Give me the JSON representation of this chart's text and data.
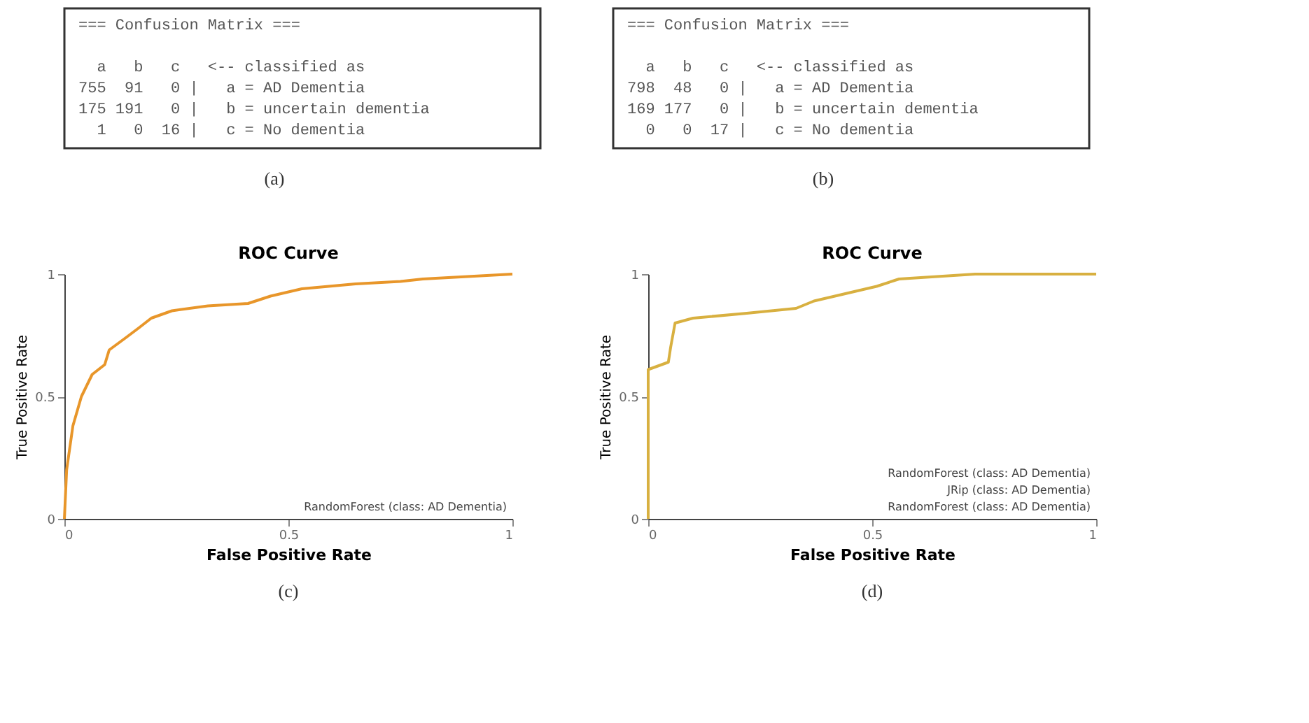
{
  "chart_data": [
    {
      "type": "other",
      "title": "=== Confusion Matrix ===",
      "annotations": [
        "  a   b   c   <-- classified as",
        "755  91   0 |   a = AD Dementia",
        "175 191   0 |   b = uncertain dementia",
        "  1   0  16 |   c = No dementia",
        "(a)"
      ]
    },
    {
      "type": "other",
      "title": "=== Confusion Matrix ===",
      "annotations": [
        "  a   b   c   <-- classified as",
        "798  48   0 |   a = AD Dementia",
        "169 177   0 |   b = uncertain dementia",
        "  0   0  17 |   c = No dementia",
        "(b)"
      ]
    },
    {
      "type": "line",
      "title": "ROC Curve",
      "xlabel": "False Positive Rate",
      "ylabel": "True Positive Rate",
      "xlim": [
        0,
        1
      ],
      "ylim": [
        0,
        1
      ],
      "xticks": [
        0,
        0.5,
        1
      ],
      "yticks": [
        0,
        0.5,
        1
      ],
      "grid": false,
      "marker": "none",
      "line_style": "solid",
      "annotations": [
        "RandomForest (class: AD Dementia)",
        "(c)"
      ],
      "series": [
        {
          "color": "#e8962a",
          "x": [
            0,
            0.005,
            0.019,
            0.038,
            0.062,
            0.09,
            0.1,
            0.137,
            0.166,
            0.194,
            0.24,
            0.32,
            0.41,
            0.46,
            0.53,
            0.65,
            0.75,
            0.8,
            0.9,
            1
          ],
          "values": [
            0,
            0.2,
            0.38,
            0.5,
            0.59,
            0.63,
            0.69,
            0.74,
            0.78,
            0.82,
            0.85,
            0.87,
            0.88,
            0.91,
            0.94,
            0.96,
            0.97,
            0.98,
            0.99,
            1
          ]
        }
      ]
    },
    {
      "type": "line",
      "title": "ROC Curve",
      "xlabel": "False Positive Rate",
      "ylabel": "True Positive Rate",
      "xlim": [
        0,
        1
      ],
      "ylim": [
        0,
        1
      ],
      "xticks": [
        0,
        0.5,
        1
      ],
      "yticks": [
        0,
        0.5,
        1
      ],
      "grid": false,
      "marker": "none",
      "line_style": "solid",
      "annotations": [
        "RandomForest (class: AD Dementia)",
        "JRip (class: AD Dementia)",
        "RandomForest (class: AD Dementia)",
        "(d)"
      ],
      "series": [
        {
          "color": "#d8b040",
          "x": [
            0,
            0,
            0.045,
            0.05,
            0.06,
            0.1,
            0.22,
            0.33,
            0.37,
            0.51,
            0.56,
            0.73,
            1
          ],
          "values": [
            0,
            0.61,
            0.64,
            0.7,
            0.8,
            0.82,
            0.84,
            0.86,
            0.89,
            0.95,
            0.98,
            1,
            1
          ]
        }
      ]
    }
  ]
}
